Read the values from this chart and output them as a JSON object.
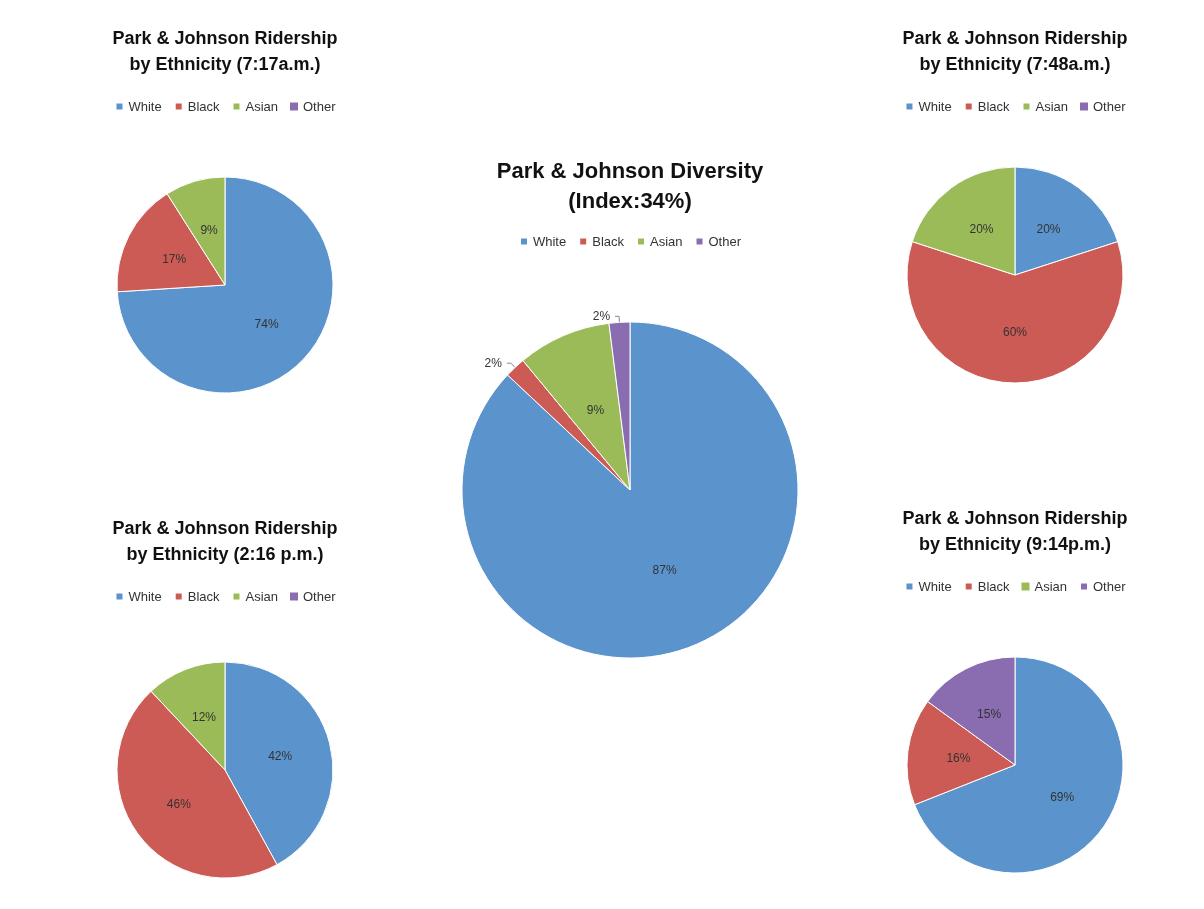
{
  "chart_data": [
    {
      "type": "pie",
      "title": "Park & Johnson Ridership\nby Ethnicity (7:17a.m.)",
      "categories": [
        "White",
        "Black",
        "Asian",
        "Other"
      ],
      "values": [
        74,
        17,
        9,
        0
      ],
      "colors": [
        "#5b93cc",
        "#cc5b55",
        "#9bbb59",
        "#8a6cb0"
      ],
      "value_labels": [
        "74%",
        "17%",
        "9%",
        null
      ],
      "legend": "top"
    },
    {
      "type": "pie",
      "title": "Park & Johnson Ridership\nby Ethnicity (7:48a.m.)",
      "categories": [
        "White",
        "Black",
        "Asian",
        "Other"
      ],
      "values": [
        20,
        60,
        20,
        0
      ],
      "colors": [
        "#5b93cc",
        "#cc5b55",
        "#9bbb59",
        "#8a6cb0"
      ],
      "value_labels": [
        "20%",
        "60%",
        "20%",
        null
      ],
      "legend": "top"
    },
    {
      "type": "pie",
      "title": "Park & Johnson Diversity\n(Index:34%)",
      "categories": [
        "White",
        "Black",
        "Asian",
        "Other"
      ],
      "values": [
        87,
        2,
        9,
        2
      ],
      "colors": [
        "#5b93cc",
        "#cc5b55",
        "#9bbb59",
        "#8a6cb0"
      ],
      "value_labels": [
        "87%",
        "2%",
        "9%",
        "2%"
      ],
      "legend": "top"
    },
    {
      "type": "pie",
      "title": "Park & Johnson Ridership\nby Ethnicity (2:16 p.m.)",
      "categories": [
        "White",
        "Black",
        "Asian",
        "Other"
      ],
      "values": [
        42,
        46,
        12,
        0
      ],
      "colors": [
        "#5b93cc",
        "#cc5b55",
        "#9bbb59",
        "#8a6cb0"
      ],
      "value_labels": [
        "42%",
        "46%",
        "12%",
        null
      ],
      "legend": "top"
    },
    {
      "type": "pie",
      "title": "Park & Johnson Ridership\nby Ethnicity (9:14p.m.)",
      "categories": [
        "White",
        "Black",
        "Asian",
        "Other"
      ],
      "values": [
        69,
        16,
        0,
        15
      ],
      "colors": [
        "#5b93cc",
        "#cc5b55",
        "#9bbb59",
        "#8a6cb0"
      ],
      "value_labels": [
        "69%",
        "16%",
        null,
        "15%"
      ],
      "legend": "top"
    }
  ]
}
